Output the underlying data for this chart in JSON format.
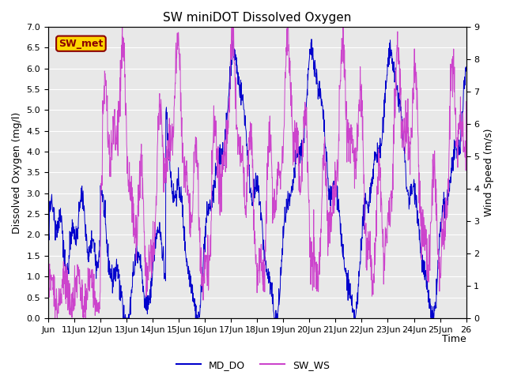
{
  "title": "SW miniDOT Dissolved Oxygen",
  "ylabel_left": "Dissolved Oxygen (mg/l)",
  "ylabel_right": "Wind Speed (m/s)",
  "xlabel": "Time",
  "ylim_left": [
    0.0,
    7.0
  ],
  "ylim_right": [
    0.0,
    9.0
  ],
  "color_do": "#0000CC",
  "color_ws": "#CC44CC",
  "background_color": "#E8E8E8",
  "legend_label": "SW_met",
  "legend_text_color": "#8B0000",
  "legend_box_color": "#FFD700",
  "line_do": "MD_DO",
  "line_ws": "SW_WS",
  "title_fontsize": 11,
  "axis_label_fontsize": 9,
  "tick_fontsize": 8,
  "legend_fontsize": 9
}
